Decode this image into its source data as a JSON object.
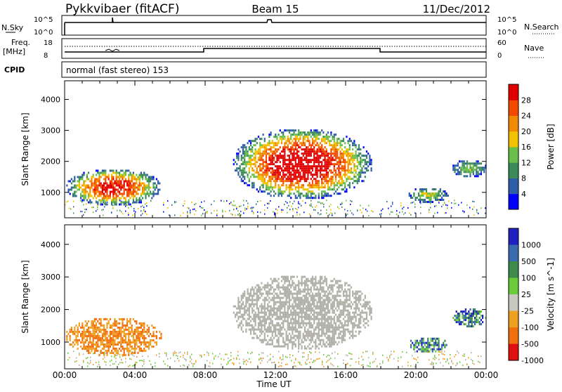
{
  "header": {
    "station": "Pykkvibaer (fitACF)",
    "beam": "Beam 15",
    "date": "11/Dec/2012"
  },
  "summary_panels": {
    "nsky_label": "N.Sky",
    "nsky_ticks": [
      "10^5",
      "10^0"
    ],
    "nsky_right_ticks": [
      "10^5",
      "10^0"
    ],
    "nsearch_label": "N.Search",
    "freq_label": "Freq.",
    "freq_unit": "[MHz]",
    "freq_ticks": [
      "18",
      "8"
    ],
    "nave_ticks": [
      "60",
      "0"
    ],
    "nave_label": "Nave",
    "cpid_label": "CPID",
    "cpid_text": "normal (fast stereo) 153"
  },
  "colors": {
    "power_scale": [
      "#0000ff",
      "#2e5ea8",
      "#3a8a5a",
      "#6abe4a",
      "#f2c200",
      "#f28a00",
      "#f24a00",
      "#e00000"
    ],
    "velocity_scale": [
      "#2020c0",
      "#3a6ab0",
      "#3e8a4a",
      "#6acc3a",
      "#c8c8c0",
      "#f0a020",
      "#f07010",
      "#e01010"
    ],
    "ground_scatter": "#b0b0a8"
  },
  "chart_data": [
    {
      "type": "heatmap",
      "panel": "power",
      "xlabel": "Time UT",
      "ylabel": "Slant Range [km]",
      "x_ticks": [
        "00:00",
        "04:00",
        "08:00",
        "12:00",
        "16:00",
        "20:00",
        "00:00"
      ],
      "x_range_hours": [
        0,
        24
      ],
      "y_ticks": [
        1000,
        2000,
        3000,
        4000
      ],
      "ylim": [
        180,
        4600
      ],
      "colorbar_label": "Power [dB]",
      "colorbar_ticks": [
        "4",
        "8",
        "12",
        "16",
        "20",
        "24",
        "28"
      ],
      "colorbar_range": [
        0,
        30
      ],
      "echo_regions": [
        {
          "t": [
            0.0,
            5.5
          ],
          "r": [
            600,
            1800
          ],
          "peak_db": 26
        },
        {
          "t": [
            9.5,
            17.5
          ],
          "r": [
            800,
            3100
          ],
          "peak_db": 30
        },
        {
          "t": [
            19.5,
            21.8
          ],
          "r": [
            700,
            1200
          ],
          "peak_db": 12
        },
        {
          "t": [
            22.0,
            24.0
          ],
          "r": [
            1500,
            2100
          ],
          "peak_db": 10
        }
      ]
    },
    {
      "type": "heatmap",
      "panel": "velocity",
      "xlabel": "Time UT",
      "ylabel": "Slant Range [km]",
      "x_ticks": [
        "00:00",
        "04:00",
        "08:00",
        "12:00",
        "16:00",
        "20:00",
        "00:00"
      ],
      "x_range_hours": [
        0,
        24
      ],
      "y_ticks": [
        1000,
        2000,
        3000,
        4000
      ],
      "ylim": [
        180,
        4600
      ],
      "colorbar_label": "Velocity [m s^-1]",
      "colorbar_ticks": [
        "1000",
        "500",
        "100",
        "25",
        "-25",
        "-100",
        "-500",
        "-1000"
      ],
      "echo_regions": [
        {
          "t": [
            0.0,
            5.5
          ],
          "r": [
            600,
            1800
          ],
          "velocity": -200
        },
        {
          "t": [
            9.5,
            17.5
          ],
          "r": [
            800,
            3100
          ],
          "velocity": 0
        },
        {
          "t": [
            19.5,
            21.8
          ],
          "r": [
            700,
            1200
          ],
          "velocity": 600
        },
        {
          "t": [
            22.0,
            24.0
          ],
          "r": [
            1500,
            2100
          ],
          "velocity": 150
        }
      ]
    }
  ]
}
